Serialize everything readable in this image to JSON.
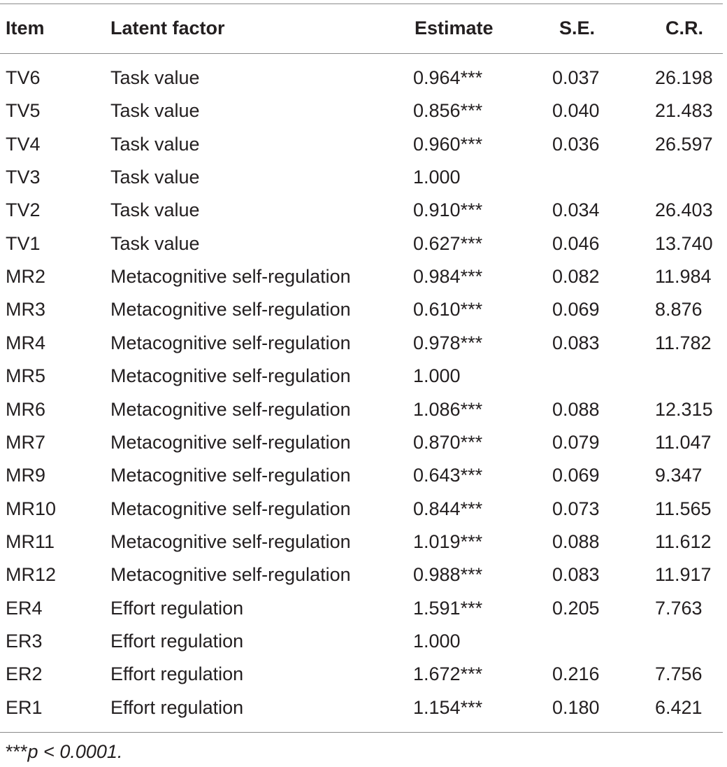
{
  "table": {
    "headers": {
      "item": "Item",
      "factor": "Latent factor",
      "estimate": "Estimate",
      "se": "S.E.",
      "cr": "C.R."
    },
    "rows": [
      {
        "item": "TV6",
        "factor": "Task value",
        "estimate": "0.964***",
        "se": "0.037",
        "cr": "26.198"
      },
      {
        "item": "TV5",
        "factor": "Task value",
        "estimate": "0.856***",
        "se": "0.040",
        "cr": "21.483"
      },
      {
        "item": "TV4",
        "factor": "Task value",
        "estimate": "0.960***",
        "se": "0.036",
        "cr": "26.597"
      },
      {
        "item": "TV3",
        "factor": "Task value",
        "estimate": "1.000",
        "se": "",
        "cr": ""
      },
      {
        "item": "TV2",
        "factor": "Task value",
        "estimate": "0.910***",
        "se": "0.034",
        "cr": "26.403"
      },
      {
        "item": "TV1",
        "factor": "Task value",
        "estimate": "0.627***",
        "se": "0.046",
        "cr": "13.740"
      },
      {
        "item": "MR2",
        "factor": "Metacognitive self-regulation",
        "estimate": "0.984***",
        "se": "0.082",
        "cr": "11.984"
      },
      {
        "item": "MR3",
        "factor": "Metacognitive self-regulation",
        "estimate": "0.610***",
        "se": "0.069",
        "cr": "8.876"
      },
      {
        "item": "MR4",
        "factor": "Metacognitive self-regulation",
        "estimate": "0.978***",
        "se": "0.083",
        "cr": "11.782"
      },
      {
        "item": "MR5",
        "factor": "Metacognitive self-regulation",
        "estimate": "1.000",
        "se": "",
        "cr": ""
      },
      {
        "item": "MR6",
        "factor": "Metacognitive self-regulation",
        "estimate": "1.086***",
        "se": "0.088",
        "cr": "12.315"
      },
      {
        "item": "MR7",
        "factor": "Metacognitive self-regulation",
        "estimate": "0.870***",
        "se": "0.079",
        "cr": "11.047"
      },
      {
        "item": "MR9",
        "factor": "Metacognitive self-regulation",
        "estimate": "0.643***",
        "se": "0.069",
        "cr": "9.347"
      },
      {
        "item": "MR10",
        "factor": "Metacognitive self-regulation",
        "estimate": "0.844***",
        "se": "0.073",
        "cr": "11.565"
      },
      {
        "item": "MR11",
        "factor": "Metacognitive self-regulation",
        "estimate": "1.019***",
        "se": "0.088",
        "cr": "11.612"
      },
      {
        "item": "MR12",
        "factor": "Metacognitive self-regulation",
        "estimate": "0.988***",
        "se": "0.083",
        "cr": "11.917"
      },
      {
        "item": "ER4",
        "factor": "Effort regulation",
        "estimate": "1.591***",
        "se": "0.205",
        "cr": "7.763"
      },
      {
        "item": "ER3",
        "factor": "Effort regulation",
        "estimate": "1.000",
        "se": "",
        "cr": ""
      },
      {
        "item": "ER2",
        "factor": "Effort regulation",
        "estimate": "1.672***",
        "se": "0.216",
        "cr": "7.756"
      },
      {
        "item": "ER1",
        "factor": "Effort regulation",
        "estimate": "1.154***",
        "se": "0.180",
        "cr": "6.421"
      }
    ]
  },
  "footnote": {
    "marker": "***",
    "text": "p < 0.0001."
  }
}
